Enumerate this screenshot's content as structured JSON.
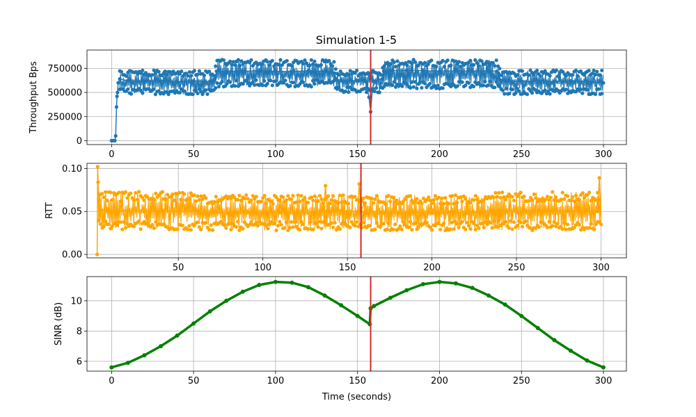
{
  "chart_data": {
    "title": "Simulation 1-5",
    "marker_line": {
      "x": 158,
      "color": "#d62728"
    },
    "panels": [
      {
        "type": "line",
        "ylabel": "Throughput Bps",
        "xlabel": "",
        "xlim": [
          -15,
          314
        ],
        "ylim": [
          -40000,
          940000
        ],
        "xticks": [
          0,
          50,
          100,
          150,
          200,
          250,
          300
        ],
        "xtick_labels": [
          "0",
          "50",
          "100",
          "150",
          "200",
          "250",
          "300"
        ],
        "yticks": [
          0,
          250000,
          500000,
          750000
        ],
        "ytick_labels": [
          "0",
          "250000",
          "500000",
          "750000"
        ],
        "grid": true,
        "color": "#1f77b4",
        "x": [
          0,
          1,
          2,
          2.5,
          3,
          3.3,
          3.6,
          4,
          5,
          10,
          20,
          30,
          40,
          50,
          60,
          62,
          63,
          64,
          70,
          80,
          90,
          100,
          110,
          120,
          130,
          136,
          137,
          140,
          150,
          155,
          157,
          158,
          159,
          160,
          165,
          166,
          170,
          180,
          190,
          200,
          210,
          220,
          230,
          235,
          236,
          237,
          240,
          250,
          260,
          270,
          280,
          290,
          300
        ],
        "values": [
          0,
          0,
          0,
          50000,
          350000,
          460000,
          500000,
          600000,
          640000,
          620000,
          615000,
          620000,
          610000,
          620000,
          615000,
          620000,
          640000,
          720000,
          715000,
          720000,
          725000,
          720000,
          715000,
          725000,
          720000,
          700000,
          640000,
          625000,
          620000,
          615000,
          450000,
          300000,
          520000,
          620000,
          640000,
          720000,
          725000,
          730000,
          725000,
          720000,
          725000,
          720000,
          725000,
          720000,
          700000,
          630000,
          620000,
          615000,
          620000,
          615000,
          620000,
          615000,
          600000
        ],
        "band": {
          "x": [
            5,
            63,
            64,
            136,
            137,
            165,
            166,
            236,
            237,
            300
          ],
          "low": [
            480000,
            480000,
            560000,
            560000,
            500000,
            500000,
            540000,
            540000,
            480000,
            480000
          ],
          "high": [
            730000,
            730000,
            840000,
            840000,
            730000,
            730000,
            840000,
            840000,
            730000,
            730000
          ]
        }
      },
      {
        "type": "line",
        "ylabel": "RTT",
        "xlabel": "",
        "xlim": [
          -4,
          315
        ],
        "ylim": [
          -0.004,
          0.106
        ],
        "xticks": [
          50,
          100,
          150,
          200,
          250,
          300
        ],
        "xtick_labels": [
          "50",
          "100",
          "150",
          "200",
          "250",
          "300"
        ],
        "yticks": [
          0,
          0.05,
          0.1
        ],
        "ytick_labels": [
          "0.00",
          "0.05",
          "0.10"
        ],
        "grid": true,
        "color": "#ffa500",
        "x": [
          2,
          2.3,
          2.6,
          3,
          4,
          10,
          20,
          30,
          40,
          50,
          60,
          62,
          63,
          70,
          80,
          90,
          100,
          110,
          120,
          130,
          136,
          137,
          138,
          140,
          150,
          156,
          157,
          158,
          160,
          162,
          170,
          180,
          190,
          200,
          210,
          220,
          230,
          236,
          237,
          240,
          250,
          260,
          270,
          280,
          290,
          298,
          299,
          300
        ],
        "values": [
          0.0,
          0.102,
          0.084,
          0.04,
          0.052,
          0.05,
          0.051,
          0.05,
          0.051,
          0.05,
          0.051,
          0.05,
          0.048,
          0.049,
          0.048,
          0.049,
          0.048,
          0.049,
          0.048,
          0.049,
          0.05,
          0.08,
          0.05,
          0.05,
          0.05,
          0.05,
          0.082,
          0.05,
          0.06,
          0.048,
          0.049,
          0.048,
          0.049,
          0.048,
          0.049,
          0.048,
          0.049,
          0.05,
          0.05,
          0.051,
          0.05,
          0.051,
          0.05,
          0.051,
          0.05,
          0.05,
          0.089,
          0.035
        ],
        "band": {
          "x": [
            3,
            62,
            63,
            236,
            237,
            300
          ],
          "low": [
            0.028,
            0.028,
            0.028,
            0.028,
            0.028,
            0.028
          ],
          "high": [
            0.073,
            0.073,
            0.069,
            0.069,
            0.073,
            0.073
          ]
        }
      },
      {
        "type": "line",
        "ylabel": "SINR (dB)",
        "xlabel": "Time (seconds)",
        "xlim": [
          -15,
          314
        ],
        "ylim": [
          5.35,
          11.6
        ],
        "xticks": [
          0,
          50,
          100,
          150,
          200,
          250,
          300
        ],
        "xtick_labels": [
          "0",
          "50",
          "100",
          "150",
          "200",
          "250",
          "300"
        ],
        "yticks": [
          6,
          8,
          10
        ],
        "ytick_labels": [
          "6",
          "8",
          "10"
        ],
        "grid": true,
        "color": "#008000",
        "x": [
          0,
          10,
          20,
          30,
          40,
          50,
          60,
          70,
          80,
          90,
          100,
          110,
          120,
          130,
          140,
          150,
          157.5,
          158,
          160,
          170,
          180,
          190,
          200,
          210,
          220,
          230,
          240,
          250,
          260,
          270,
          280,
          290,
          300
        ],
        "values": [
          5.6,
          5.9,
          6.4,
          7.0,
          7.7,
          8.5,
          9.3,
          10.0,
          10.6,
          11.05,
          11.25,
          11.2,
          10.9,
          10.35,
          9.7,
          9.0,
          8.45,
          9.5,
          9.65,
          10.2,
          10.7,
          11.1,
          11.25,
          11.15,
          10.85,
          10.35,
          9.75,
          9.0,
          8.2,
          7.4,
          6.7,
          6.05,
          5.6
        ]
      }
    ]
  }
}
